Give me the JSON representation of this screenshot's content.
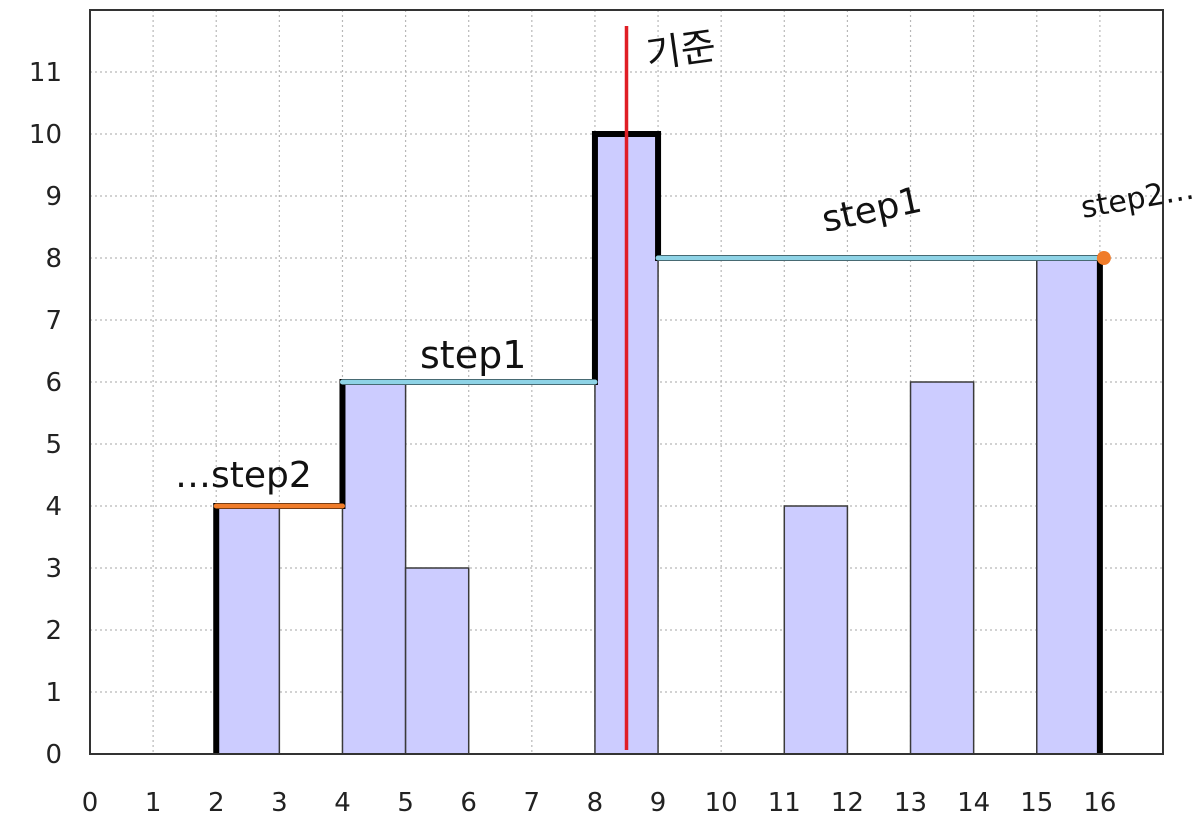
{
  "chart_data": {
    "type": "bar",
    "x_tick_labels": [
      "0",
      "1",
      "2",
      "3",
      "4",
      "5",
      "6",
      "7",
      "8",
      "9",
      "10",
      "11",
      "12",
      "13",
      "14",
      "15",
      "16"
    ],
    "y_tick_labels": [
      "0",
      "1",
      "2",
      "3",
      "4",
      "5",
      "6",
      "7",
      "8",
      "9",
      "10",
      "11"
    ],
    "xlim": [
      0,
      17
    ],
    "ylim": [
      0,
      12
    ],
    "bars": [
      {
        "x0": 2,
        "x1": 3,
        "value": 4
      },
      {
        "x0": 4,
        "x1": 5,
        "value": 6
      },
      {
        "x0": 5,
        "x1": 6,
        "value": 3
      },
      {
        "x0": 8,
        "x1": 9,
        "value": 10
      },
      {
        "x0": 11,
        "x1": 12,
        "value": 4
      },
      {
        "x0": 13,
        "x1": 14,
        "value": 6
      },
      {
        "x0": 15,
        "x1": 16,
        "value": 8
      }
    ],
    "bar_color": "#ccccff",
    "grid": true,
    "annotations": {
      "outline_color": "#000000",
      "pivot": {
        "x": 8.5,
        "label": "기준",
        "color": "#e01e25"
      },
      "step1_lines": [
        {
          "x0": 4,
          "x1": 8,
          "y": 6
        },
        {
          "x0": 9,
          "x1": 16,
          "y": 8
        }
      ],
      "step1_color": "#8ed3e6",
      "step1_labels": [
        "step1",
        "step1"
      ],
      "step2_line": {
        "x0": 2,
        "x1": 4,
        "y": 4
      },
      "step2_marker": {
        "x": 16,
        "y": 8
      },
      "step2_color": "#f07c2a",
      "step2_labels": [
        "…step2",
        "step2…"
      ]
    }
  }
}
